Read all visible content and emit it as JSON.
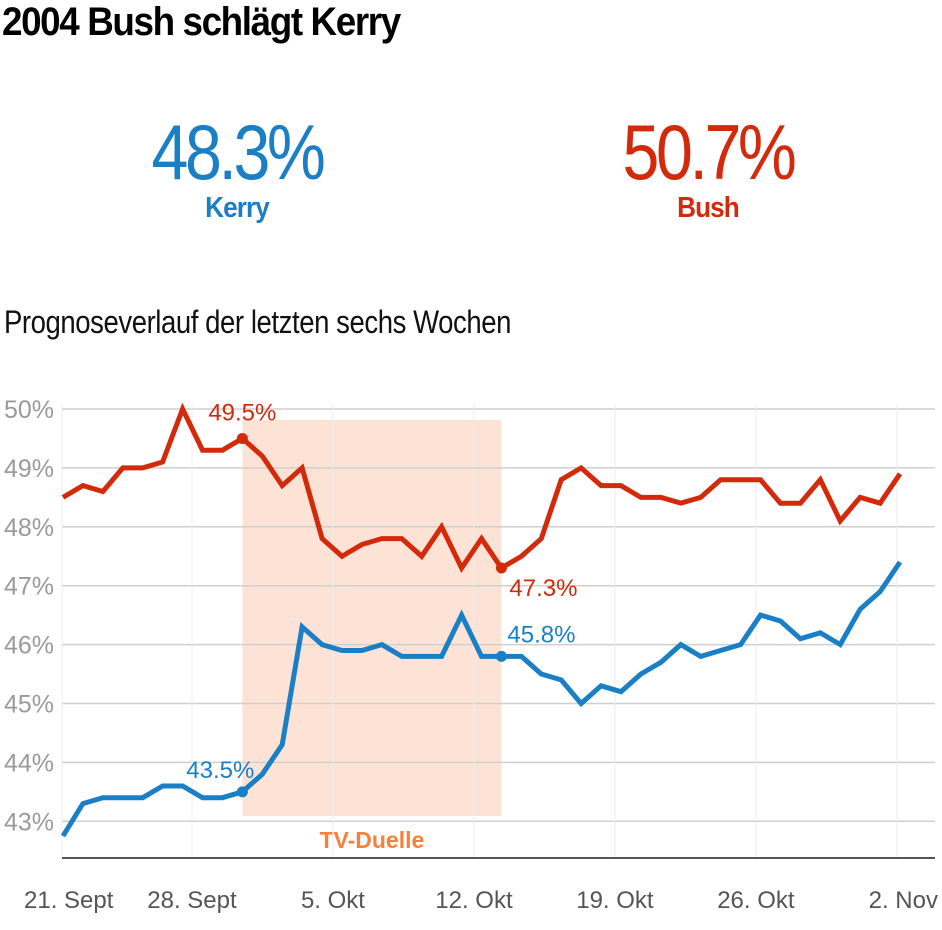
{
  "header": {
    "title": "2004 Bush schlägt Kerry"
  },
  "results": {
    "kerry": {
      "value": "48.3%",
      "name": "Kerry",
      "color": "#1a7fc4"
    },
    "bush": {
      "value": "50.7%",
      "name": "Bush",
      "color": "#d42a0c"
    }
  },
  "subtitle": "Prognoseverlauf der letzten sechs Wochen",
  "chart_data": {
    "type": "line",
    "title": "Prognoseverlauf der letzten sechs Wochen",
    "xlabel": "",
    "ylabel": "",
    "ylim": [
      42.8,
      50
    ],
    "yticks": [
      50,
      49,
      48,
      47,
      46,
      45,
      44,
      43
    ],
    "ytick_labels": [
      "50%",
      "49%",
      "48%",
      "47%",
      "46%",
      "45%",
      "44%",
      "43%"
    ],
    "xtick_labels": [
      "21. Sept",
      "28. Sept",
      "5. Okt",
      "12. Okt",
      "19. Okt",
      "26. Okt",
      "2. Nov"
    ],
    "xtick_days": [
      0,
      7,
      14,
      21,
      28,
      35,
      42
    ],
    "grid": true,
    "highlight": {
      "label": "TV-Duelle",
      "start_day": 9,
      "end_day": 22,
      "color": "#fde3d6",
      "label_color": "#f5823c"
    },
    "series": [
      {
        "name": "Bush",
        "color": "#d42a0c",
        "values": [
          48.5,
          48.7,
          48.6,
          49.0,
          49.0,
          49.1,
          50.0,
          49.3,
          49.3,
          49.5,
          49.2,
          48.7,
          49.0,
          47.8,
          47.5,
          47.7,
          47.8,
          47.8,
          47.5,
          48.0,
          47.3,
          47.8,
          47.3,
          47.5,
          47.8,
          48.8,
          49.0,
          48.7,
          48.7,
          48.5,
          48.5,
          48.4,
          48.5,
          48.8,
          48.8,
          48.8,
          48.4,
          48.4,
          48.8,
          48.1,
          48.5,
          48.4,
          48.9
        ],
        "annotations": [
          {
            "day": 9,
            "value": 49.5,
            "label": "49.5%",
            "position": "above"
          },
          {
            "day": 22,
            "value": 47.3,
            "label": "47.3%",
            "position": "below-right"
          }
        ]
      },
      {
        "name": "Kerry",
        "color": "#1a7fc4",
        "values": [
          42.75,
          43.3,
          43.4,
          43.4,
          43.4,
          43.6,
          43.6,
          43.4,
          43.4,
          43.5,
          43.8,
          44.3,
          46.3,
          46.0,
          45.9,
          45.9,
          46.0,
          45.8,
          45.8,
          45.8,
          46.5,
          45.8,
          45.8,
          45.8,
          45.5,
          45.4,
          45.0,
          45.3,
          45.2,
          45.5,
          45.7,
          46.0,
          45.8,
          45.9,
          46.0,
          46.5,
          46.4,
          46.1,
          46.2,
          46.0,
          46.6,
          46.9,
          47.4
        ],
        "annotations": [
          {
            "day": 9,
            "value": 43.5,
            "label": "43.5%",
            "position": "above-left"
          },
          {
            "day": 22,
            "value": 45.8,
            "label": "45.8%",
            "position": "above-right"
          }
        ]
      }
    ]
  }
}
